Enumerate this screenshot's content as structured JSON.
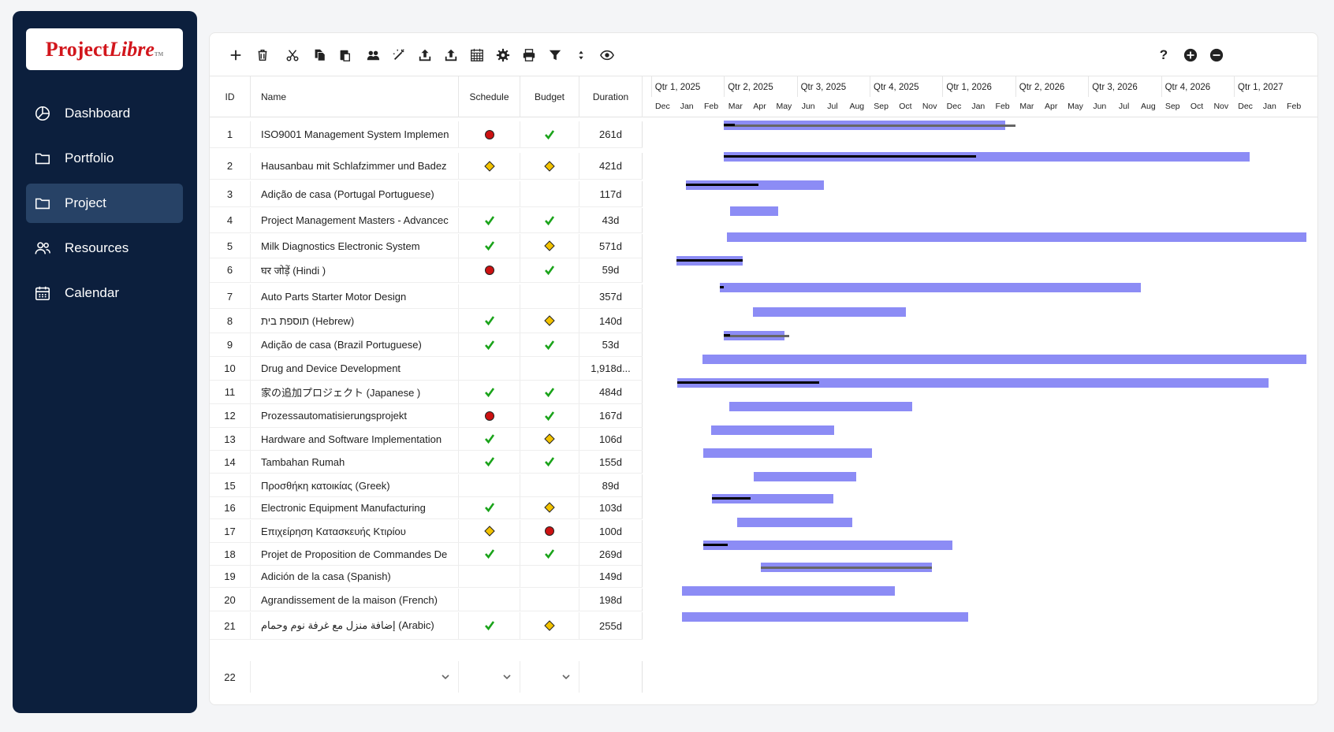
{
  "app": {
    "logo_primary": "Project",
    "logo_secondary": "Libre",
    "logo_tm": "TM"
  },
  "sidebar": {
    "items": [
      {
        "label": "Dashboard",
        "icon": "dashboard-icon"
      },
      {
        "label": "Portfolio",
        "icon": "folder-icon"
      },
      {
        "label": "Project",
        "icon": "folder-icon",
        "active": true
      },
      {
        "label": "Resources",
        "icon": "users-icon"
      },
      {
        "label": "Calendar",
        "icon": "calendar-icon"
      }
    ]
  },
  "toolbar": {
    "left_icons": [
      "add-icon",
      "delete-icon",
      "cut-icon",
      "copy-icon",
      "paste-icon",
      "assign-resources-icon",
      "magic-wand-icon",
      "indent-icon",
      "outdent-icon",
      "calendar-grid-icon",
      "settings-gear-icon",
      "print-icon",
      "filter-icon",
      "sort-icon",
      "eye-icon"
    ],
    "right_icons": [
      "help-icon",
      "zoom-in-icon",
      "zoom-out-icon"
    ],
    "help_label": "?"
  },
  "table": {
    "columns": {
      "id": "ID",
      "name": "Name",
      "schedule": "Schedule",
      "budget": "Budget",
      "duration": "Duration"
    },
    "rows": [
      {
        "id": "1",
        "name": "ISO9001 Management System Implemen",
        "schedule": "red",
        "budget": "check",
        "duration": "261d"
      },
      {
        "id": "2",
        "name": "Hausanbau mit Schlafzimmer und Badez",
        "schedule": "yellow",
        "budget": "yellow",
        "duration": "421d"
      },
      {
        "id": "3",
        "name": "Adição de casa (Portugal Portuguese)",
        "schedule": "",
        "budget": "",
        "duration": "117d"
      },
      {
        "id": "4",
        "name": "Project Management Masters - Advancec",
        "schedule": "check",
        "budget": "check",
        "duration": "43d"
      },
      {
        "id": "5",
        "name": "Milk Diagnostics Electronic System",
        "schedule": "check",
        "budget": "yellow",
        "duration": "571d"
      },
      {
        "id": "6",
        "name": "घर जोड़ें (Hindi )",
        "schedule": "red",
        "budget": "check",
        "duration": "59d"
      },
      {
        "id": "7",
        "name": "Auto Parts Starter Motor Design",
        "schedule": "",
        "budget": "",
        "duration": "357d"
      },
      {
        "id": "8",
        "name": "תוספת בית (Hebrew)",
        "schedule": "check",
        "budget": "yellow",
        "duration": "140d"
      },
      {
        "id": "9",
        "name": "Adição de casa (Brazil Portuguese)",
        "schedule": "check",
        "budget": "check",
        "duration": "53d"
      },
      {
        "id": "10",
        "name": "Drug and Device Development",
        "schedule": "",
        "budget": "",
        "duration": "1,918d..."
      },
      {
        "id": "11",
        "name": "家の追加プロジェクト (Japanese )",
        "schedule": "check",
        "budget": "check",
        "duration": "484d"
      },
      {
        "id": "12",
        "name": "Prozessautomatisierungsprojekt",
        "schedule": "red",
        "budget": "check",
        "duration": "167d"
      },
      {
        "id": "13",
        "name": "Hardware and Software Implementation",
        "schedule": "check",
        "budget": "yellow",
        "duration": "106d"
      },
      {
        "id": "14",
        "name": "Tambahan Rumah",
        "schedule": "check",
        "budget": "check",
        "duration": "155d"
      },
      {
        "id": "15",
        "name": "Προσθήκη κατοικίας (Greek)",
        "schedule": "",
        "budget": "",
        "duration": "89d"
      },
      {
        "id": "16",
        "name": "Electronic Equipment Manufacturing",
        "schedule": "check",
        "budget": "yellow",
        "duration": "103d"
      },
      {
        "id": "17",
        "name": "Επιχείρηση Κατασκευής Κτιρίου",
        "schedule": "yellow",
        "budget": "red",
        "duration": "100d"
      },
      {
        "id": "18",
        "name": "Projet de Proposition de Commandes De",
        "schedule": "check",
        "budget": "check",
        "duration": "269d"
      },
      {
        "id": "19",
        "name": "Adición de la casa (Spanish)",
        "schedule": "",
        "budget": "",
        "duration": "149d"
      },
      {
        "id": "20",
        "name": "Agrandissement de la maison (French)",
        "schedule": "",
        "budget": "",
        "duration": "198d"
      },
      {
        "id": "21",
        "name": "إضافة منزل مع غرفة نوم وحمام (Arabic)",
        "schedule": "check",
        "budget": "yellow",
        "duration": "255d"
      }
    ],
    "new_row_id": "22"
  },
  "gantt": {
    "quarters": [
      "Qtr 1, 2025",
      "Qtr 2, 2025",
      "Qtr 3, 2025",
      "Qtr 4, 2025",
      "Qtr 1, 2026",
      "Qtr 2, 2026",
      "Qtr 3, 2026",
      "Qtr 4, 2026",
      "Qtr 1, 2027"
    ],
    "months": [
      "Dec",
      "Jan",
      "Feb",
      "Mar",
      "Apr",
      "May",
      "Jun",
      "Jul",
      "Aug",
      "Sep",
      "Oct",
      "Nov",
      "Dec",
      "Jan",
      "Feb",
      "Mar",
      "Apr",
      "May",
      "Jun",
      "Jul",
      "Aug",
      "Sep",
      "Oct",
      "Nov",
      "Dec",
      "Jan",
      "Feb"
    ],
    "timeline_start": "2024-12-01",
    "tasks": [
      {
        "start": "2025-03-01",
        "finish": "2026-02-16",
        "progress": 0.04,
        "baseline_finish": "2026-03-01"
      },
      {
        "start": "2025-03-01",
        "finish": "2026-12-20",
        "progress": 0.48,
        "baseline_finish": ""
      },
      {
        "start": "2025-01-12",
        "finish": "2025-07-04",
        "progress": 0.53,
        "baseline_finish": ""
      },
      {
        "start": "2025-03-09",
        "finish": "2025-05-08",
        "progress": 0,
        "baseline_finish": ""
      },
      {
        "start": "2025-03-05",
        "finish": "2027-03-01",
        "progress": 0,
        "baseline_finish": ""
      },
      {
        "start": "2025-01-01",
        "finish": "2025-03-25",
        "progress": 1.0,
        "baseline_finish": ""
      },
      {
        "start": "2025-02-24",
        "finish": "2026-08-05",
        "progress": 0.01,
        "baseline_finish": ""
      },
      {
        "start": "2025-04-06",
        "finish": "2025-10-15",
        "progress": 0,
        "baseline_finish": ""
      },
      {
        "start": "2025-03-01",
        "finish": "2025-05-16",
        "progress": 0.1,
        "baseline_finish": "2025-05-22"
      },
      {
        "start": "2025-02-02",
        "finish": "2027-03-01",
        "progress": 0,
        "baseline_finish": ""
      },
      {
        "start": "2025-01-02",
        "finish": "2027-01-12",
        "progress": 0.24,
        "baseline_finish": ""
      },
      {
        "start": "2025-03-08",
        "finish": "2025-10-23",
        "progress": 0,
        "baseline_finish": ""
      },
      {
        "start": "2025-02-13",
        "finish": "2025-07-17",
        "progress": 0,
        "baseline_finish": ""
      },
      {
        "start": "2025-02-03",
        "finish": "2025-09-03",
        "progress": 0,
        "baseline_finish": ""
      },
      {
        "start": "2025-04-07",
        "finish": "2025-08-14",
        "progress": 0,
        "baseline_finish": ""
      },
      {
        "start": "2025-02-14",
        "finish": "2025-07-16",
        "progress": 0.32,
        "baseline_finish": ""
      },
      {
        "start": "2025-03-18",
        "finish": "2025-08-09",
        "progress": 0,
        "baseline_finish": ""
      },
      {
        "start": "2025-02-03",
        "finish": "2025-12-12",
        "progress": 0.1,
        "baseline_finish": ""
      },
      {
        "start": "2025-04-16",
        "finish": "2025-11-17",
        "progress": 0,
        "baseline_finish": "2025-11-17",
        "baseline_only": true
      },
      {
        "start": "2025-01-08",
        "finish": "2025-10-01",
        "progress": 0,
        "baseline_finish": ""
      },
      {
        "start": "2025-01-08",
        "finish": "2026-01-01",
        "progress": 0,
        "baseline_finish": ""
      }
    ]
  },
  "colors": {
    "sidebar_bg": "#0c1f3d",
    "sidebar_active": "#274266",
    "bar": "#8c8cf5",
    "status_red": "#cc1111",
    "status_yellow": "#f2c200",
    "status_check": "#1aa31a",
    "logo_red": "#d2161c"
  }
}
